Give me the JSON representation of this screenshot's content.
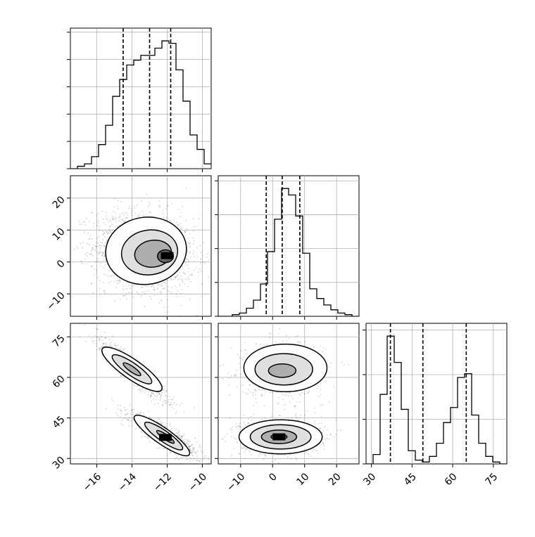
{
  "chart_data": {
    "type": "corner",
    "parameters": [
      {
        "name": "",
        "range": [
          -17.5,
          -9.5
        ],
        "ticks": [
          -16,
          -14,
          -12,
          -10
        ],
        "tick_labels": [
          "−16",
          "−14",
          "−12",
          "−10"
        ],
        "quantiles": [
          -14.5,
          -13.0,
          -11.8
        ]
      },
      {
        "name": "",
        "range": [
          -17,
          27
        ],
        "ticks": [
          -10,
          0,
          10,
          20
        ],
        "tick_labels": [
          "−10",
          "0",
          "10",
          "20"
        ],
        "quantiles": [
          -2.0,
          3.0,
          8.5
        ]
      },
      {
        "name": "",
        "range": [
          28,
          80
        ],
        "ticks": [
          30,
          45,
          60,
          75
        ],
        "tick_labels": [
          "30",
          "45",
          "60",
          "75"
        ],
        "quantiles": [
          37.0,
          49.0,
          65.0
        ]
      }
    ],
    "histograms": [
      {
        "param": 0,
        "edges_start": -17.5,
        "bin_width": 0.4,
        "counts": [
          0,
          1,
          2,
          5,
          10,
          18,
          30,
          37,
          43,
          45,
          47,
          47,
          50,
          53,
          52,
          41,
          28,
          14,
          8,
          2
        ]
      },
      {
        "param": 1,
        "edges_start": -17,
        "bin_width": 2.2,
        "counts": [
          0,
          0,
          1,
          2,
          5,
          10,
          20,
          40,
          60,
          79,
          75,
          62,
          39,
          17,
          11,
          7,
          4,
          2,
          1,
          0
        ]
      },
      {
        "param": 2,
        "edges_start": 28,
        "bin_width": 2.6,
        "counts": [
          0,
          5,
          37,
          68,
          54,
          29,
          7,
          2,
          1,
          4,
          11,
          22,
          30,
          46,
          48,
          26,
          11,
          4,
          1,
          0
        ]
      }
    ],
    "panels_2d": [
      {
        "x_param": 0,
        "y_param": 1,
        "clusters": [
          {
            "cx": -13.3,
            "cy": 3.2,
            "sx": 1.25,
            "sy": 5.5,
            "rho": -0.15,
            "n": 1800
          }
        ],
        "contour_levels": [
          {
            "cx": -13.2,
            "cy": 3.5,
            "rx": 2.3,
            "ry": 10.5,
            "angle": -8
          },
          {
            "cx": -13.0,
            "cy": 3.0,
            "rx": 1.6,
            "ry": 7.0,
            "angle": -8
          },
          {
            "cx": -12.8,
            "cy": 2.6,
            "rx": 1.05,
            "ry": 4.2,
            "angle": -8
          },
          {
            "cx": -12.1,
            "cy": 1.8,
            "rx": 0.45,
            "ry": 2.0,
            "angle": 0
          }
        ],
        "density_peak": {
          "x": -12.0,
          "y": 2.0
        }
      },
      {
        "x_param": 0,
        "y_param": 2,
        "clusters": [
          {
            "cx": -14.0,
            "cy": 63.0,
            "sx": 0.85,
            "sy": 5.0,
            "rho": -0.92,
            "n": 900
          },
          {
            "cx": -12.2,
            "cy": 38.5,
            "sx": 0.85,
            "sy": 3.5,
            "rho": -0.88,
            "n": 900
          }
        ],
        "contour_levels": [
          {
            "cx": -14.0,
            "cy": 63.0,
            "rx": 2.05,
            "ry": 3.6,
            "angle": 35
          },
          {
            "cx": -14.0,
            "cy": 63.0,
            "rx": 1.35,
            "ry": 2.3,
            "angle": 35
          },
          {
            "cx": -14.0,
            "cy": 63.0,
            "rx": 0.6,
            "ry": 1.0,
            "angle": 35
          },
          {
            "cx": -12.3,
            "cy": 38.5,
            "rx": 1.9,
            "ry": 3.0,
            "angle": 35
          },
          {
            "cx": -12.2,
            "cy": 38.3,
            "rx": 1.3,
            "ry": 2.0,
            "angle": 35
          },
          {
            "cx": -12.1,
            "cy": 38.0,
            "rx": 0.6,
            "ry": 0.9,
            "angle": 35
          }
        ],
        "density_peak": {
          "x": -12.1,
          "y": 37.8
        }
      },
      {
        "x_param": 1,
        "y_param": 2,
        "clusters": [
          {
            "cx": 3.0,
            "cy": 63.0,
            "sx": 5.5,
            "sy": 4.2,
            "rho": 0.0,
            "n": 900
          },
          {
            "cx": 2.5,
            "cy": 38.0,
            "sx": 5.5,
            "sy": 3.0,
            "rho": 0.0,
            "n": 900
          }
        ],
        "contour_levels": [
          {
            "cx": 4.0,
            "cy": 63.5,
            "rx": 13.0,
            "ry": 8.8,
            "angle": 0
          },
          {
            "cx": 3.5,
            "cy": 63.0,
            "rx": 9.0,
            "ry": 5.8,
            "angle": 0
          },
          {
            "cx": 3.0,
            "cy": 62.5,
            "rx": 4.3,
            "ry": 2.5,
            "angle": 0
          },
          {
            "cx": 2.5,
            "cy": 38.0,
            "rx": 13.0,
            "ry": 6.3,
            "angle": 0
          },
          {
            "cx": 2.5,
            "cy": 38.0,
            "rx": 9.5,
            "ry": 4.5,
            "angle": 0
          },
          {
            "cx": 2.0,
            "cy": 38.0,
            "rx": 5.5,
            "ry": 2.5,
            "angle": 0
          },
          {
            "cx": 2.0,
            "cy": 38.0,
            "rx": 2.5,
            "ry": 1.0,
            "angle": 0
          }
        ],
        "density_peak": {
          "x": 2.0,
          "y": 38.0
        }
      }
    ],
    "grid": true,
    "quantile_line_style": "dashed"
  }
}
